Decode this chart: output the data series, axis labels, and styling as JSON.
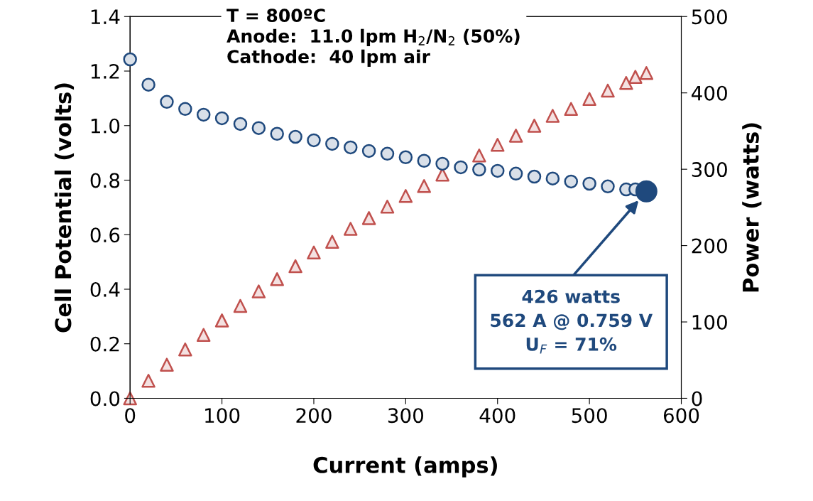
{
  "chart_data": {
    "type": "scatter",
    "xlabel": "Current (amps)",
    "ylabel": "Cell Potential (volts)",
    "y2label": "Power (watts)",
    "x": [
      0,
      20,
      40,
      60,
      80,
      100,
      120,
      140,
      160,
      180,
      200,
      220,
      240,
      260,
      280,
      300,
      320,
      340,
      360,
      380,
      400,
      420,
      440,
      460,
      480,
      500,
      520,
      540,
      550,
      562
    ],
    "series": [
      {
        "color": "#1f497d",
        "marker": "circle",
        "values": [
          1.243,
          1.15,
          1.087,
          1.061,
          1.04,
          1.027,
          1.006,
          0.991,
          0.97,
          0.959,
          0.946,
          0.933,
          0.92,
          0.907,
          0.897,
          0.884,
          0.871,
          0.86,
          0.847,
          0.839,
          0.834,
          0.824,
          0.813,
          0.806,
          0.795,
          0.787,
          0.777,
          0.766,
          0.766,
          null
        ]
      },
      {
        "color": "#c0504d",
        "marker": "triangle",
        "axis": "y2",
        "values": [
          0,
          23,
          44,
          64,
          83,
          102,
          121,
          140,
          156,
          173,
          191,
          205,
          222,
          236,
          251,
          265,
          278,
          293,
          null,
          318,
          332,
          344,
          357,
          370,
          379,
          392,
          403,
          413,
          421,
          426
        ]
      },
      {
        "color": "#1f497d",
        "marker": "circle",
        "x": [
          562
        ],
        "values": [
          0.759
        ]
      }
    ],
    "xlim": [
      0,
      600
    ],
    "xticks": [
      0,
      100,
      200,
      300,
      400,
      500,
      600
    ],
    "ylim": [
      0,
      1.4
    ],
    "yticks": [
      {
        "value": 0,
        "label": "0.0"
      },
      0.2,
      0.4,
      0.6,
      0.8,
      {
        "value": 1,
        "label": "1.0"
      },
      1.2,
      1.4
    ],
    "y2lim": [
      0,
      500
    ],
    "y2ticks": [
      0,
      100,
      200,
      300,
      400,
      500
    ],
    "grid": false,
    "legend": false,
    "annotations": [
      "T = 800ºC\nAnode:  11.0 lpm H$_{2}$/N$_{2}$ (50%)\nCathode:  40 lpm air",
      "426 watts\n562 A @ 0.759 V\nU$_{F}$ = 71%"
    ]
  }
}
